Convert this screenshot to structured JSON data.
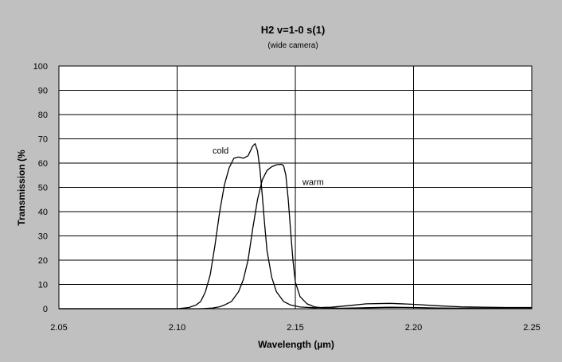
{
  "chart_data": {
    "type": "line",
    "title": "H2 v=1-0 s(1)",
    "subtitle": "(wide camera)",
    "xlabel": "Wavelength (µm)",
    "ylabel": "Transmission (%",
    "xlim": [
      2.05,
      2.25
    ],
    "ylim": [
      0,
      100
    ],
    "x_ticks": [
      "2.05",
      "2.10",
      "2.15",
      "2.20",
      "2.25"
    ],
    "x_tick_values": [
      2.05,
      2.1,
      2.15,
      2.2,
      2.25
    ],
    "y_ticks": [
      "0",
      "10",
      "20",
      "30",
      "40",
      "50",
      "60",
      "70",
      "80",
      "90",
      "100"
    ],
    "y_tick_values": [
      0,
      10,
      20,
      30,
      40,
      50,
      60,
      70,
      80,
      90,
      100
    ],
    "grid": true,
    "background_color": "#c0c0c0",
    "plot_area_color": "#ffffff",
    "line_color": "#000000",
    "series": [
      {
        "name": "cold",
        "points": [
          [
            2.05,
            0
          ],
          [
            2.1,
            0
          ],
          [
            2.105,
            0.5
          ],
          [
            2.108,
            1.5
          ],
          [
            2.11,
            3
          ],
          [
            2.112,
            7
          ],
          [
            2.114,
            14
          ],
          [
            2.116,
            26
          ],
          [
            2.118,
            40
          ],
          [
            2.12,
            51
          ],
          [
            2.122,
            58
          ],
          [
            2.124,
            62
          ],
          [
            2.126,
            62.5
          ],
          [
            2.128,
            62
          ],
          [
            2.13,
            63
          ],
          [
            2.132,
            67
          ],
          [
            2.133,
            68
          ],
          [
            2.134,
            65
          ],
          [
            2.135,
            58
          ],
          [
            2.136,
            47
          ],
          [
            2.137,
            35
          ],
          [
            2.138,
            24
          ],
          [
            2.14,
            13
          ],
          [
            2.142,
            7
          ],
          [
            2.145,
            3
          ],
          [
            2.148,
            1.5
          ],
          [
            2.152,
            0.7
          ],
          [
            2.158,
            0.4
          ],
          [
            2.165,
            0.6
          ],
          [
            2.172,
            1.2
          ],
          [
            2.18,
            2.0
          ],
          [
            2.19,
            2.2
          ],
          [
            2.2,
            1.8
          ],
          [
            2.21,
            1.2
          ],
          [
            2.22,
            0.8
          ],
          [
            2.23,
            0.6
          ],
          [
            2.24,
            0.5
          ],
          [
            2.25,
            0.5
          ]
        ]
      },
      {
        "name": "warm",
        "points": [
          [
            2.05,
            0
          ],
          [
            2.11,
            0
          ],
          [
            2.115,
            0.3
          ],
          [
            2.118,
            0.8
          ],
          [
            2.12,
            1.5
          ],
          [
            2.123,
            3
          ],
          [
            2.126,
            7
          ],
          [
            2.128,
            12
          ],
          [
            2.13,
            20
          ],
          [
            2.132,
            33
          ],
          [
            2.134,
            45
          ],
          [
            2.136,
            53
          ],
          [
            2.138,
            57
          ],
          [
            2.14,
            58.5
          ],
          [
            2.142,
            59.3
          ],
          [
            2.144,
            59.5
          ],
          [
            2.145,
            59
          ],
          [
            2.146,
            55
          ],
          [
            2.147,
            45
          ],
          [
            2.148,
            32
          ],
          [
            2.149,
            20
          ],
          [
            2.15,
            11
          ],
          [
            2.152,
            5
          ],
          [
            2.155,
            2
          ],
          [
            2.158,
            0.8
          ],
          [
            2.162,
            0.3
          ],
          [
            2.17,
            0.2
          ],
          [
            2.18,
            0.4
          ],
          [
            2.19,
            0.6
          ],
          [
            2.2,
            0.5
          ],
          [
            2.21,
            0.3
          ],
          [
            2.23,
            0.2
          ],
          [
            2.25,
            0.1
          ]
        ]
      }
    ],
    "annotations": [
      {
        "text": "cold",
        "x": 2.115,
        "y": 64
      },
      {
        "text": "warm",
        "x": 2.153,
        "y": 51
      }
    ]
  }
}
